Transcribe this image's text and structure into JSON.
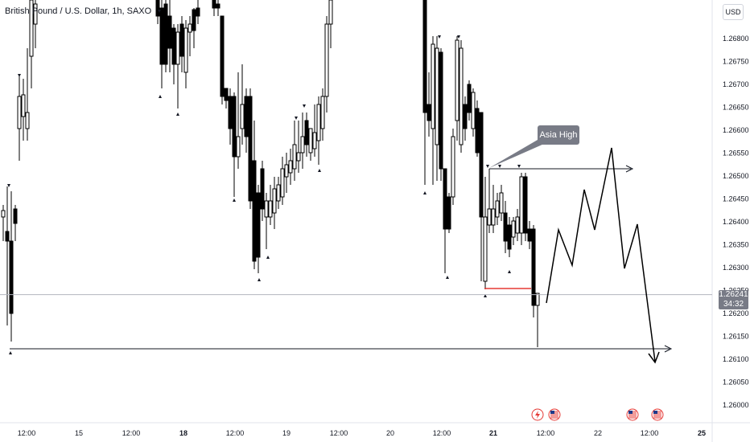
{
  "chart_title": "British Pound / U.S. Dollar, 1h, SAXO",
  "currency": "USD",
  "chart_data": {
    "type": "candlestick",
    "symbol": "British Pound / U.S. Dollar",
    "interval": "1h",
    "source": "SAXO",
    "ylim": [
      1.2596,
      1.269
    ],
    "y_ticks": [
      "1.26000",
      "1.26050",
      "1.26100",
      "1.26150",
      "1.26200",
      "1.26250",
      "1.26300",
      "1.26350",
      "1.26400",
      "1.26450",
      "1.26500",
      "1.26550",
      "1.26600",
      "1.26650",
      "1.26700",
      "1.26750",
      "1.26800"
    ],
    "x_ticks": [
      "12:00",
      "15",
      "12:00",
      "18",
      "12:00",
      "19",
      "12:00",
      "20",
      "12:00",
      "21",
      "12:00",
      "22",
      "12:00",
      "25"
    ],
    "x_ticks_bold": [
      "18",
      "21",
      "25"
    ],
    "current_price": "1.26241",
    "countdown": "34:32",
    "annotation": "Asia High",
    "colors": {
      "bull": "#ffffff",
      "bear": "#000000",
      "axis": "#131722",
      "grid": "#e0e3eb",
      "support": "#e53935",
      "label_bg": "#787b86"
    },
    "events": [
      "lightning-icon",
      "us-flag-icon",
      "us-flag-icon",
      "us-flag-icon"
    ]
  }
}
